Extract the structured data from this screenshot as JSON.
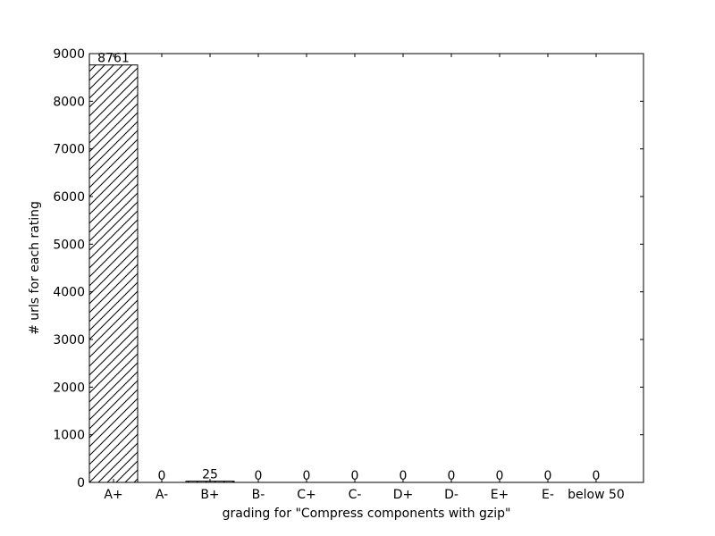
{
  "chart_data": {
    "type": "bar",
    "categories": [
      "A+",
      "A-",
      "B+",
      "B-",
      "C+",
      "C-",
      "D+",
      "D-",
      "E+",
      "E-",
      "below 50"
    ],
    "values": [
      8761,
      0,
      25,
      0,
      0,
      0,
      0,
      0,
      0,
      0,
      0
    ],
    "data_labels": [
      "8761",
      "0",
      "25",
      "0",
      "0",
      "0",
      "0",
      "0",
      "0",
      "0",
      "0"
    ],
    "title": "",
    "xlabel": "grading for \"Compress components with gzip\"",
    "ylabel": "# urls for each rating",
    "ylim": [
      0,
      9000
    ],
    "yticks": [
      0,
      1000,
      2000,
      3000,
      4000,
      5000,
      6000,
      7000,
      8000,
      9000
    ],
    "bar_fill": "#ffffff",
    "bar_edge": "#000000",
    "hatch": "diagonal",
    "grid": false,
    "legend": "none"
  }
}
